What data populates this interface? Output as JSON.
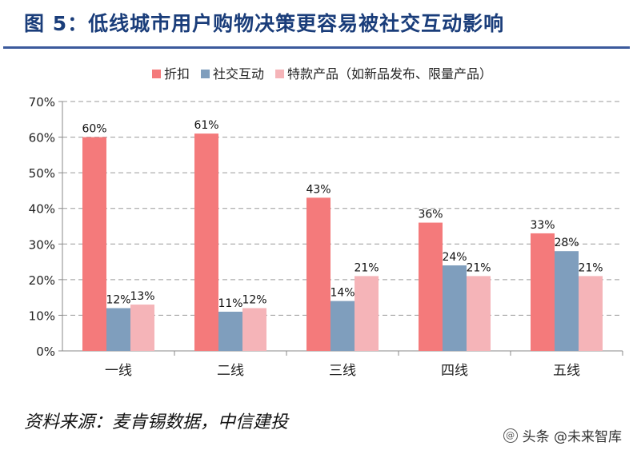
{
  "figure": {
    "title": "图 5：低线城市用户购物决策更容易被社交互动影响",
    "source": "资料来源：麦肯锡数据，中信建投",
    "watermark": "头条 @未来智库",
    "watermark_icon": "at-icon"
  },
  "chart_data": {
    "type": "bar",
    "title": "",
    "xlabel": "",
    "ylabel": "",
    "categories": [
      "一线",
      "二线",
      "三线",
      "四线",
      "五线"
    ],
    "series": [
      {
        "name": "折扣",
        "color": "#f47a7b",
        "values": [
          60,
          61,
          43,
          36,
          33
        ]
      },
      {
        "name": "社交互动",
        "color": "#7f9ebd",
        "values": [
          12,
          11,
          14,
          24,
          28
        ]
      },
      {
        "name": "特款产品（如新品发布、限量产品）",
        "color": "#f5b4b8",
        "values": [
          13,
          12,
          21,
          21,
          21
        ]
      }
    ],
    "ylim": [
      0,
      70
    ],
    "yticks": [
      0,
      10,
      20,
      30,
      40,
      50,
      60,
      70
    ],
    "ytick_suffix": "%",
    "data_label_suffix": "%",
    "grid": "horizontal-dashed",
    "legend": "top"
  }
}
